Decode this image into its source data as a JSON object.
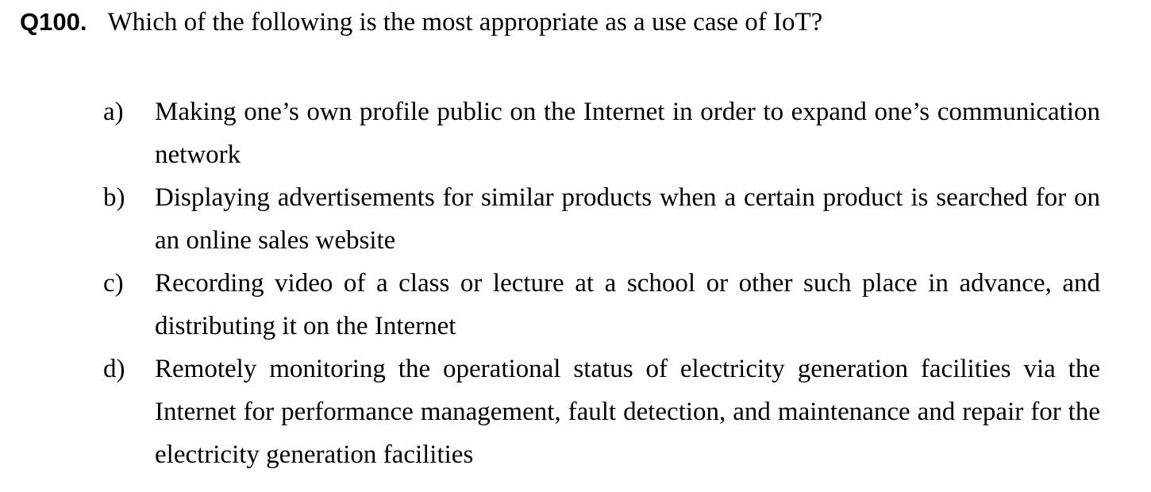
{
  "question": {
    "number": "Q100.",
    "text": "Which of the following is the most appropriate as a use case of IoT?"
  },
  "options": [
    {
      "letter": "a)",
      "text": "Making one’s own profile public on the Internet in order to expand one’s communication network"
    },
    {
      "letter": "b)",
      "text": "Displaying advertisements for similar products when a certain product is searched for on an online sales website"
    },
    {
      "letter": "c)",
      "text": "Recording video of a class or lecture at a school or other such place in advance, and distributing it on the Internet"
    },
    {
      "letter": "d)",
      "text": "Remotely monitoring the operational status of electricity generation facilities via the Internet for performance management, fault detection, and maintenance and repair for the electricity generation facilities"
    }
  ]
}
